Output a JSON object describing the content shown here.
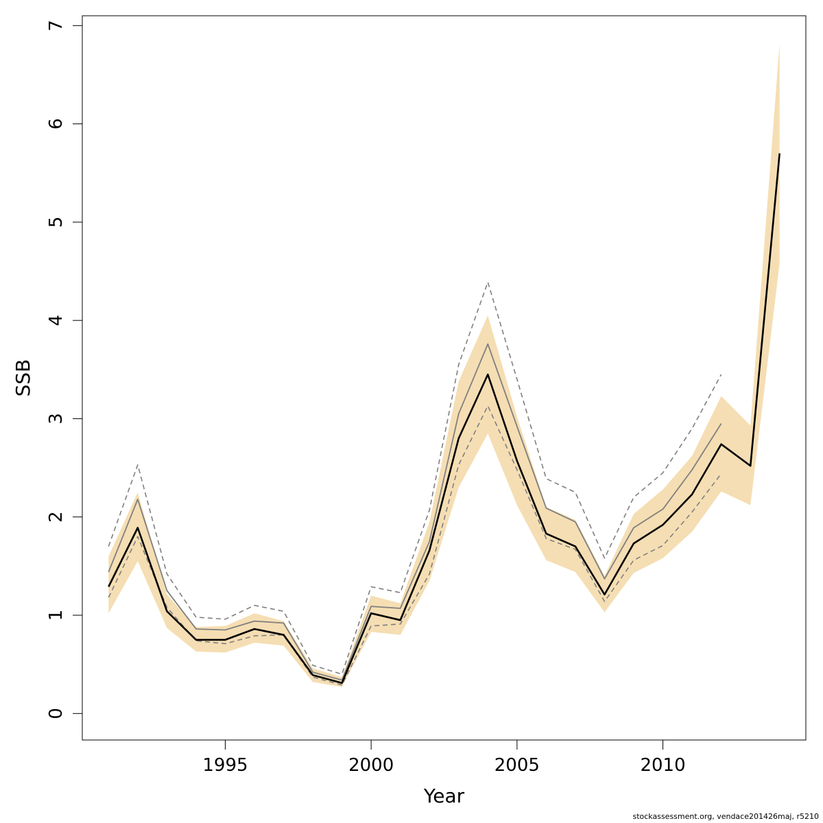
{
  "chart_data": {
    "type": "line",
    "title": "",
    "xlabel": "Year",
    "ylabel": "SSB",
    "xlim": [
      1990.1,
      2014.9
    ],
    "ylim": [
      -0.27,
      7.1
    ],
    "x_ticks": [
      "1995",
      "2000",
      "2005",
      "2010"
    ],
    "x_tick_values": [
      1995,
      2000,
      2005,
      2010
    ],
    "y_ticks": [
      "0",
      "1",
      "2",
      "3",
      "4",
      "5",
      "6",
      "7"
    ],
    "y_tick_values": [
      0,
      1,
      2,
      3,
      4,
      5,
      6,
      7
    ],
    "grid": false,
    "legend": "none",
    "colors": {
      "band": "#f5deb3",
      "estimate": "#000000",
      "previous": "#7f7f7f",
      "previous_ci": "#7f7f7f"
    },
    "series": [
      {
        "role": "confidence-band",
        "x": [
          1991,
          1992,
          1993,
          1994,
          1995,
          1996,
          1997,
          1998,
          1999,
          2000,
          2001,
          2002,
          2003,
          2004,
          2005,
          2006,
          2007,
          2008,
          2009,
          2010,
          2011,
          2012,
          2013,
          2014
        ],
        "lower": [
          1.02,
          1.55,
          0.87,
          0.63,
          0.62,
          0.72,
          0.69,
          0.32,
          0.27,
          0.83,
          0.8,
          1.35,
          2.3,
          2.85,
          2.12,
          1.56,
          1.44,
          1.03,
          1.43,
          1.58,
          1.85,
          2.26,
          2.12,
          4.58
        ],
        "upper": [
          1.6,
          2.25,
          1.21,
          0.88,
          0.89,
          1.02,
          0.94,
          0.46,
          0.37,
          1.2,
          1.12,
          1.95,
          3.38,
          4.05,
          3.02,
          2.1,
          1.97,
          1.4,
          2.03,
          2.28,
          2.62,
          3.23,
          2.93,
          6.82
        ]
      },
      {
        "role": "estimate",
        "x": [
          1991,
          1992,
          1993,
          1994,
          1995,
          1996,
          1997,
          1998,
          1999,
          2000,
          2001,
          2002,
          2003,
          2004,
          2005,
          2006,
          2007,
          2008,
          2009,
          2010,
          2011,
          2012,
          2013,
          2014
        ],
        "values": [
          1.29,
          1.89,
          1.04,
          0.75,
          0.75,
          0.86,
          0.8,
          0.39,
          0.31,
          1.02,
          0.95,
          1.66,
          2.8,
          3.45,
          2.57,
          1.83,
          1.7,
          1.21,
          1.73,
          1.92,
          2.23,
          2.74,
          2.52,
          5.7
        ]
      },
      {
        "role": "previous-assessment",
        "x": [
          1991,
          1992,
          1993,
          1994,
          1995,
          1996,
          1997,
          1998,
          1999,
          2000,
          2001,
          2002,
          2003,
          2004,
          2005,
          2006,
          2007,
          2008,
          2009,
          2010,
          2011,
          2012
        ],
        "values": [
          1.44,
          2.18,
          1.25,
          0.86,
          0.85,
          0.94,
          0.92,
          0.42,
          0.34,
          1.09,
          1.07,
          1.75,
          3.05,
          3.76,
          2.92,
          2.09,
          1.95,
          1.37,
          1.89,
          2.08,
          2.48,
          2.95
        ]
      },
      {
        "role": "previous-upper",
        "x": [
          1991,
          1992,
          1993,
          1994,
          1995,
          1996,
          1997,
          1998,
          1999,
          2000,
          2001,
          2002,
          2003,
          2004,
          2005,
          2006,
          2007,
          2008,
          2009,
          2010,
          2011,
          2012
        ],
        "values": [
          1.7,
          2.53,
          1.42,
          0.98,
          0.96,
          1.1,
          1.04,
          0.49,
          0.4,
          1.29,
          1.23,
          2.07,
          3.55,
          4.39,
          3.4,
          2.39,
          2.25,
          1.58,
          2.2,
          2.45,
          2.9,
          3.45
        ]
      },
      {
        "role": "previous-lower",
        "x": [
          1991,
          1992,
          1993,
          1994,
          1995,
          1996,
          1997,
          1998,
          1999,
          2000,
          2001,
          2002,
          2003,
          2004,
          2005,
          2006,
          2007,
          2008,
          2009,
          2010,
          2011,
          2012
        ],
        "values": [
          1.18,
          1.8,
          1.08,
          0.74,
          0.71,
          0.79,
          0.8,
          0.37,
          0.29,
          0.89,
          0.91,
          1.42,
          2.53,
          3.13,
          2.48,
          1.78,
          1.67,
          1.14,
          1.56,
          1.71,
          2.05,
          2.44
        ]
      }
    ]
  },
  "footer": {
    "text": "stockassessment.org, vendace201426maj, r5210"
  }
}
